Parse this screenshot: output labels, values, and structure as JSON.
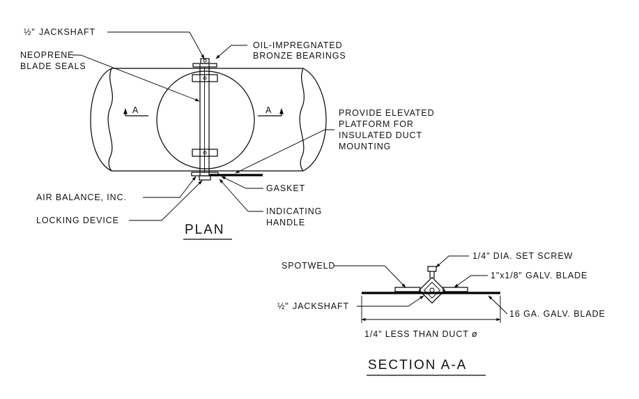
{
  "plan": {
    "title": "PLAN",
    "section_mark_left": "A",
    "section_mark_right": "A",
    "labels": {
      "jackshaft_prefix": "½\"",
      "jackshaft": "JACKSHAFT",
      "bearings_line1": "OIL-IMPREGNATED",
      "bearings_line2": "BRONZE BEARINGS",
      "seals_line1": "NEOPRENE",
      "seals_line2": "BLADE SEALS",
      "platform_line1": "PROVIDE ELEVATED",
      "platform_line2": "PLATFORM FOR",
      "platform_line3": "INSULATED DUCT",
      "platform_line4": "MOUNTING",
      "air_balance": "AIR BALANCE, INC.",
      "gasket": "GASKET",
      "locking_device": "LOCKING DEVICE",
      "handle_line1": "INDICATING",
      "handle_line2": "HANDLE"
    }
  },
  "section": {
    "title": "SECTION A-A",
    "labels": {
      "spotweld": "SPOTWELD",
      "set_screw": "1/4\" DIA. SET SCREW",
      "blade_1": "1\"x1/8\" GALV. BLADE",
      "jackshaft_prefix": "½\"",
      "jackshaft": "JACKSHAFT",
      "blade_16": "16 GA. GALV. BLADE",
      "dimension": "1/4\" LESS THAN DUCT ø"
    }
  }
}
